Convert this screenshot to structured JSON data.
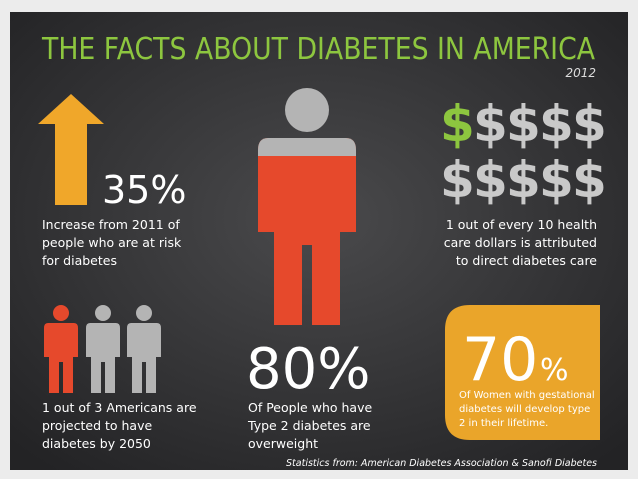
{
  "header": {
    "title": "THE FACTS ABOUT DIABETES IN AMERICA",
    "year": "2012"
  },
  "stats": [
    {
      "value": "35%",
      "lines": [
        "Increase from 2011 of",
        "people who are at risk",
        "for diabetes"
      ]
    },
    {
      "symbol": "$",
      "lines": [
        "1 out of every 10 health",
        "care dollars is attributed",
        "to direct diabetes care"
      ]
    },
    {
      "lines": [
        "1 out of 3 Americans are",
        "projected to have",
        "diabetes by 2050"
      ]
    },
    {
      "value": "80%",
      "lines": [
        "Of People who have",
        "Type 2 diabetes are",
        "overweight"
      ]
    },
    {
      "value": "70",
      "unit": "%",
      "lines": [
        "Of Women with gestational",
        "diabetes will develop type",
        "2 in their lifetime."
      ]
    }
  ],
  "footer": "Statistics from: American Diabetes Association & Sanofi Diabetes"
}
